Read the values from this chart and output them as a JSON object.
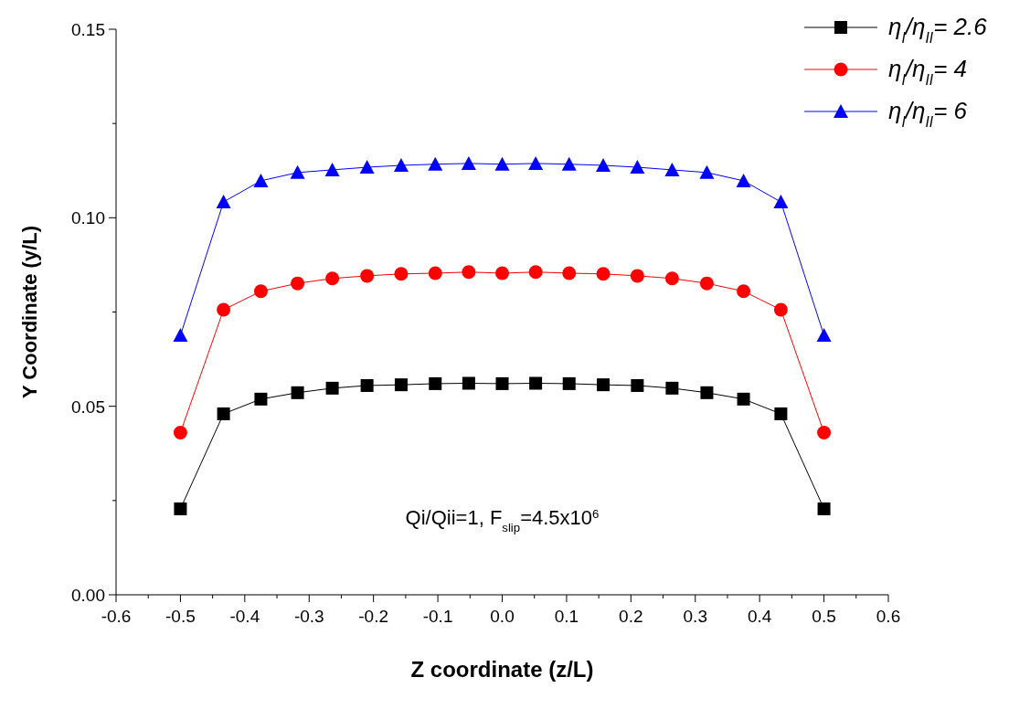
{
  "chart_data": {
    "type": "line",
    "xlabel": "Z coordinate (z/L)",
    "ylabel": "Y Coordinate (y/L)",
    "x": [
      -0.5,
      -0.433,
      -0.375,
      -0.318,
      -0.264,
      -0.21,
      -0.157,
      -0.104,
      -0.052,
      0,
      0.052,
      0.104,
      0.157,
      0.21,
      0.264,
      0.318,
      0.375,
      0.433,
      0.5
    ],
    "series": [
      {
        "name": "η$_{I}$/η$_{II}$= 2.6",
        "color": "#000000",
        "marker": "square",
        "values": [
          0.0228,
          0.048,
          0.0519,
          0.0536,
          0.0548,
          0.0555,
          0.0557,
          0.056,
          0.0561,
          0.056,
          0.0561,
          0.056,
          0.0557,
          0.0555,
          0.0548,
          0.0536,
          0.0519,
          0.048,
          0.0228
        ]
      },
      {
        "name": "η$_{I}$/η$_{II}$= 4",
        "color": "#ff0000",
        "marker": "circle",
        "values": [
          0.043,
          0.0756,
          0.0805,
          0.0826,
          0.0839,
          0.0846,
          0.0851,
          0.0853,
          0.0856,
          0.0853,
          0.0856,
          0.0853,
          0.0851,
          0.0846,
          0.0839,
          0.0826,
          0.0805,
          0.0756,
          0.043
        ]
      },
      {
        "name": "η$_{I}$/η$_{II}$= 6",
        "color": "#0000ff",
        "marker": "triangle",
        "values": [
          0.0688,
          0.1042,
          0.1098,
          0.112,
          0.1127,
          0.1134,
          0.1139,
          0.1142,
          0.1144,
          0.1142,
          0.1144,
          0.1142,
          0.1139,
          0.1134,
          0.1127,
          0.112,
          0.1098,
          0.1042,
          0.0688
        ]
      }
    ],
    "xlim": [
      -0.6,
      0.6
    ],
    "xticks": [
      {
        "value": -0.6,
        "label": "-0.6"
      },
      {
        "value": -0.55,
        "label": null
      },
      {
        "value": -0.5,
        "label": "-0.5"
      },
      {
        "value": -0.45,
        "label": null
      },
      {
        "value": -0.4,
        "label": "-0.4"
      },
      {
        "value": -0.35,
        "label": null
      },
      {
        "value": -0.3,
        "label": "-0.3"
      },
      {
        "value": -0.25,
        "label": null
      },
      {
        "value": -0.2,
        "label": "-0.2"
      },
      {
        "value": -0.15,
        "label": null
      },
      {
        "value": -0.1,
        "label": "-0.1"
      },
      {
        "value": -0.05,
        "label": null
      },
      {
        "value": 0,
        "label": "0.0"
      },
      {
        "value": 0.05,
        "label": null
      },
      {
        "value": 0.1,
        "label": "0.1"
      },
      {
        "value": 0.15,
        "label": null
      },
      {
        "value": 0.2,
        "label": "0.2"
      },
      {
        "value": 0.25,
        "label": null
      },
      {
        "value": 0.3,
        "label": "0.3"
      },
      {
        "value": 0.35,
        "label": null
      },
      {
        "value": 0.4,
        "label": "0.4"
      },
      {
        "value": 0.45,
        "label": null
      },
      {
        "value": 0.5,
        "label": "0.5"
      },
      {
        "value": 0.55,
        "label": null
      },
      {
        "value": 0.6,
        "label": "0.6"
      }
    ],
    "ylim": [
      0,
      0.15
    ],
    "yticks": [
      {
        "value": 0,
        "label": "0.00"
      },
      {
        "value": 0.025,
        "label": null
      },
      {
        "value": 0.05,
        "label": "0.05"
      },
      {
        "value": 0.075,
        "label": null
      },
      {
        "value": 0.1,
        "label": "0.10"
      },
      {
        "value": 0.125,
        "label": null
      },
      {
        "value": 0.15,
        "label": "0.15"
      }
    ],
    "annotations": [
      "Qi/Qii=1,   F$_{slip}$=4.5x10$^{6}$"
    ],
    "legend": "top right",
    "grid": false,
    "line_style": "solid"
  }
}
